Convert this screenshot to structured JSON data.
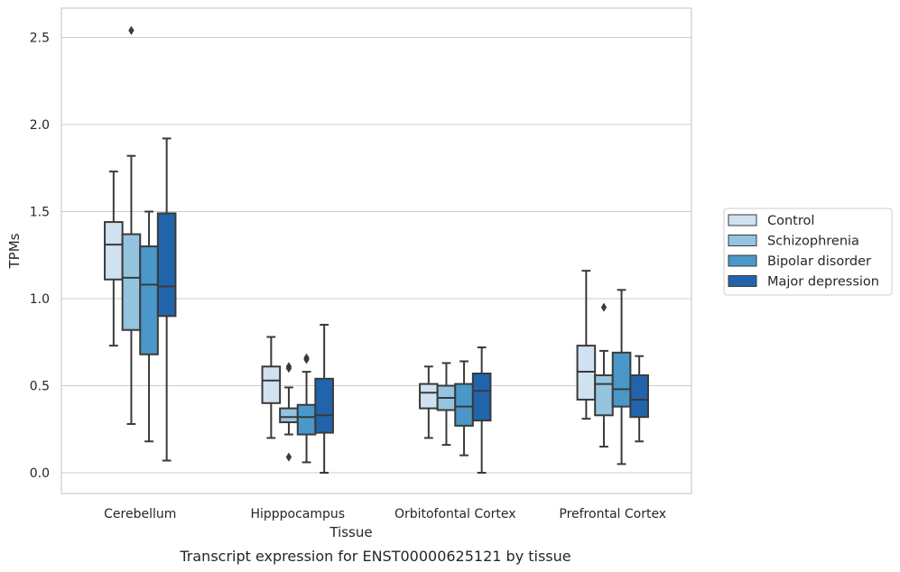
{
  "chart_data": {
    "type": "boxplot",
    "caption": "Transcript expression for ENST00000625121 by tissue",
    "xlabel": "Tissue",
    "ylabel": "TPMs",
    "ylim": [
      -0.12,
      2.67
    ],
    "yticks": [
      0.0,
      0.5,
      1.0,
      1.5,
      2.0,
      2.5
    ],
    "ytick_labels": [
      "0.0",
      "0.5",
      "1.0",
      "1.5",
      "2.0",
      "2.5"
    ],
    "grid": true,
    "legend_position": "right",
    "categories": [
      "Cerebellum",
      "Hipppocampus",
      "Orbitofontal Cortex",
      "Prefrontal Cortex"
    ],
    "series": [
      {
        "name": "Control",
        "color": "#d0e1f2",
        "boxes": [
          {
            "whislo": 0.73,
            "q1": 1.11,
            "med": 1.31,
            "q3": 1.44,
            "whishi": 1.73,
            "fliers": []
          },
          {
            "whislo": 0.2,
            "q1": 0.4,
            "med": 0.53,
            "q3": 0.61,
            "whishi": 0.78,
            "fliers": []
          },
          {
            "whislo": 0.2,
            "q1": 0.37,
            "med": 0.46,
            "q3": 0.51,
            "whishi": 0.61,
            "fliers": []
          },
          {
            "whislo": 0.31,
            "q1": 0.42,
            "med": 0.58,
            "q3": 0.73,
            "whishi": 1.16,
            "fliers": []
          }
        ]
      },
      {
        "name": "Schizophrenia",
        "color": "#94c4df",
        "boxes": [
          {
            "whislo": 0.28,
            "q1": 0.82,
            "med": 1.12,
            "q3": 1.37,
            "whishi": 1.82,
            "fliers": [
              2.54
            ]
          },
          {
            "whislo": 0.22,
            "q1": 0.29,
            "med": 0.32,
            "q3": 0.37,
            "whishi": 0.49,
            "fliers": [
              0.09,
              0.6,
              0.61
            ]
          },
          {
            "whislo": 0.16,
            "q1": 0.36,
            "med": 0.43,
            "q3": 0.5,
            "whishi": 0.63,
            "fliers": []
          },
          {
            "whislo": 0.15,
            "q1": 0.33,
            "med": 0.51,
            "q3": 0.56,
            "whishi": 0.7,
            "fliers": [
              0.95
            ]
          }
        ]
      },
      {
        "name": "Bipolar disorder",
        "color": "#4a98c9",
        "boxes": [
          {
            "whislo": 0.18,
            "q1": 0.68,
            "med": 1.08,
            "q3": 1.3,
            "whishi": 1.5,
            "fliers": []
          },
          {
            "whislo": 0.06,
            "q1": 0.22,
            "med": 0.32,
            "q3": 0.39,
            "whishi": 0.58,
            "fliers": [
              0.65,
              0.66
            ]
          },
          {
            "whislo": 0.1,
            "q1": 0.27,
            "med": 0.38,
            "q3": 0.51,
            "whishi": 0.64,
            "fliers": []
          },
          {
            "whislo": 0.05,
            "q1": 0.38,
            "med": 0.48,
            "q3": 0.69,
            "whishi": 1.05,
            "fliers": []
          }
        ]
      },
      {
        "name": "Major depression",
        "color": "#2164ab",
        "boxes": [
          {
            "whislo": 0.07,
            "q1": 0.9,
            "med": 1.07,
            "q3": 1.49,
            "whishi": 1.92,
            "fliers": []
          },
          {
            "whislo": 0.0,
            "q1": 0.23,
            "med": 0.33,
            "q3": 0.54,
            "whishi": 0.85,
            "fliers": []
          },
          {
            "whislo": 0.0,
            "q1": 0.3,
            "med": 0.47,
            "q3": 0.57,
            "whishi": 0.72,
            "fliers": []
          },
          {
            "whislo": 0.18,
            "q1": 0.32,
            "med": 0.42,
            "q3": 0.56,
            "whishi": 0.67,
            "fliers": []
          }
        ]
      }
    ]
  }
}
